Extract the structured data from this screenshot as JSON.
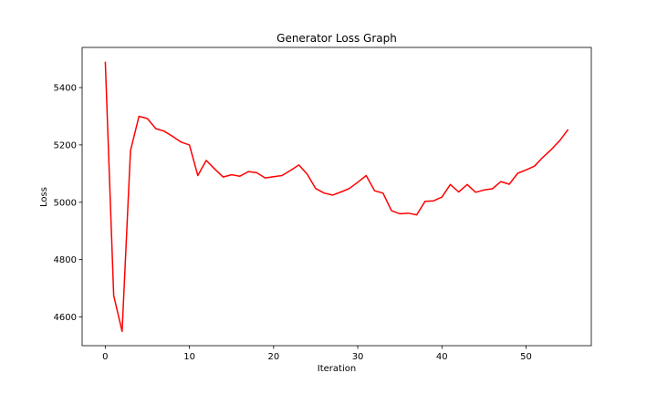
{
  "chart_data": {
    "type": "line",
    "title": "Generator Loss Graph",
    "xlabel": "Iteration",
    "ylabel": "Loss",
    "xlim": [
      -2.75,
      57.75
    ],
    "ylim": [
      4500,
      5540
    ],
    "xticks": [
      0,
      10,
      20,
      30,
      40,
      50
    ],
    "yticks": [
      4600,
      4800,
      5000,
      5200,
      5400
    ],
    "grid": false,
    "series": [
      {
        "color": "#ff0000",
        "x": [
          0,
          1,
          2,
          3,
          4,
          5,
          6,
          7,
          8,
          9,
          10,
          11,
          12,
          13,
          14,
          15,
          16,
          17,
          18,
          19,
          20,
          21,
          22,
          23,
          24,
          25,
          26,
          27,
          28,
          29,
          30,
          31,
          32,
          33,
          34,
          35,
          36,
          37,
          38,
          39,
          40,
          41,
          42,
          43,
          44,
          45,
          46,
          47,
          48,
          49,
          50,
          51,
          52,
          53,
          54,
          55
        ],
        "y": [
          5490,
          4675,
          4550,
          5180,
          5300,
          5292,
          5257,
          5248,
          5230,
          5210,
          5200,
          5093,
          5146,
          5116,
          5088,
          5096,
          5091,
          5107,
          5103,
          5085,
          5089,
          5093,
          5111,
          5130,
          5098,
          5048,
          5032,
          5025,
          5036,
          5048,
          5070,
          5093,
          5040,
          5032,
          4971,
          4960,
          4962,
          4956,
          5003,
          5005,
          5018,
          5062,
          5036,
          5062,
          5035,
          5043,
          5047,
          5072,
          5063,
          5101,
          5113,
          5126,
          5157,
          5184,
          5215,
          5254
        ]
      }
    ]
  }
}
